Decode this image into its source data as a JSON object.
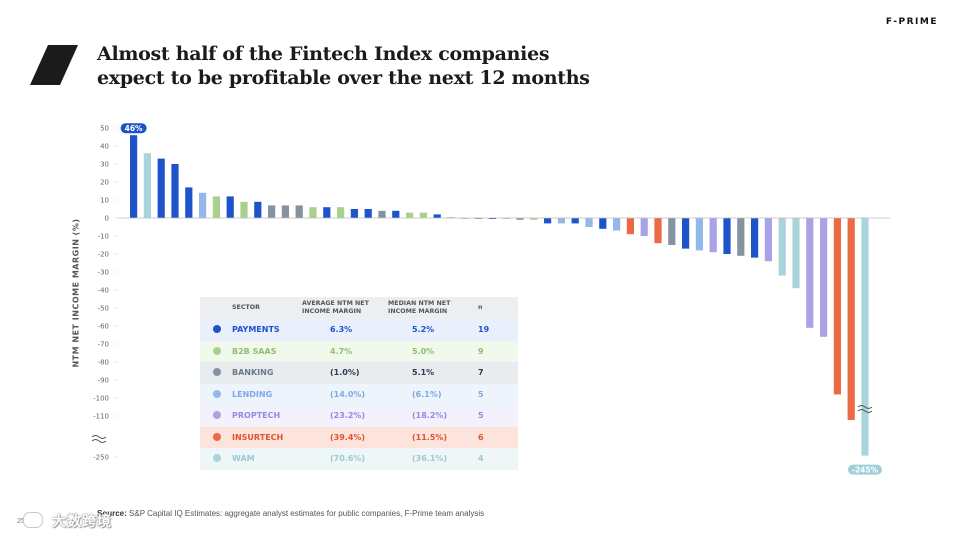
{
  "slide": {
    "title_line1": "Almost half of the Fintech Index companies",
    "title_line2": "expect to be profitable over the next 12 months",
    "brand": "F-PRIME",
    "page_number": "25",
    "watermark_text": "大数跨境",
    "source_label": "Source:",
    "source_text": " S&P Capital IQ Estimates: aggregate analyst estimates for public companies, F-Prime team analysis"
  },
  "colors": {
    "payments": "#1f53c9",
    "b2b_saas": "#a9d18e",
    "banking": "#8593a0",
    "lending": "#93b9e8",
    "proptech": "#a9a2e6",
    "insurtech": "#ea6a43",
    "wam": "#a9d4db",
    "callout": "#1f53c9",
    "callout_neg": "#9fcfd8"
  },
  "chart_data": {
    "type": "bar",
    "ylabel": "NTM NET INCOME MARGIN (%)",
    "yticks": [
      "50",
      "40",
      "30",
      "20",
      "10",
      "0",
      "-10",
      "-20",
      "-30",
      "-40",
      "-50",
      "-60",
      "-70",
      "-80",
      "-90",
      "-100",
      "-110",
      "-250"
    ],
    "ylim": [
      -120,
      50
    ],
    "axis_break": "between -110 and -250",
    "callouts": [
      {
        "label": "46%",
        "bar_index": 0
      },
      {
        "label": "-245%",
        "bar_index": 53
      }
    ],
    "values": [
      {
        "v": 46,
        "s": "payments"
      },
      {
        "v": 36,
        "s": "wam"
      },
      {
        "v": 33,
        "s": "payments"
      },
      {
        "v": 30,
        "s": "payments"
      },
      {
        "v": 17,
        "s": "payments"
      },
      {
        "v": 14,
        "s": "lending"
      },
      {
        "v": 12,
        "s": "b2b_saas"
      },
      {
        "v": 12,
        "s": "payments"
      },
      {
        "v": 9,
        "s": "b2b_saas"
      },
      {
        "v": 9,
        "s": "payments"
      },
      {
        "v": 7,
        "s": "banking"
      },
      {
        "v": 7,
        "s": "banking"
      },
      {
        "v": 7,
        "s": "banking"
      },
      {
        "v": 6,
        "s": "b2b_saas"
      },
      {
        "v": 6,
        "s": "payments"
      },
      {
        "v": 6,
        "s": "b2b_saas"
      },
      {
        "v": 5,
        "s": "payments"
      },
      {
        "v": 5,
        "s": "payments"
      },
      {
        "v": 4,
        "s": "banking"
      },
      {
        "v": 4,
        "s": "payments"
      },
      {
        "v": 3,
        "s": "b2b_saas"
      },
      {
        "v": 3,
        "s": "b2b_saas"
      },
      {
        "v": 2,
        "s": "payments"
      },
      {
        "v": 0.5,
        "s": "lending"
      },
      {
        "v": 0,
        "s": "b2b_saas"
      },
      {
        "v": 0,
        "s": "banking"
      },
      {
        "v": 0,
        "s": "payments"
      },
      {
        "v": 0,
        "s": "b2b_saas"
      },
      {
        "v": -1,
        "s": "banking"
      },
      {
        "v": -1,
        "s": "b2b_saas"
      },
      {
        "v": -3,
        "s": "payments"
      },
      {
        "v": -3,
        "s": "lending"
      },
      {
        "v": -3,
        "s": "payments"
      },
      {
        "v": -5,
        "s": "lending"
      },
      {
        "v": -6,
        "s": "payments"
      },
      {
        "v": -7,
        "s": "lending"
      },
      {
        "v": -9,
        "s": "insurtech"
      },
      {
        "v": -10,
        "s": "proptech"
      },
      {
        "v": -14,
        "s": "insurtech"
      },
      {
        "v": -15,
        "s": "banking"
      },
      {
        "v": -17,
        "s": "payments"
      },
      {
        "v": -18,
        "s": "lending"
      },
      {
        "v": -19,
        "s": "proptech"
      },
      {
        "v": -20,
        "s": "payments"
      },
      {
        "v": -21,
        "s": "banking"
      },
      {
        "v": -22,
        "s": "payments"
      },
      {
        "v": -24,
        "s": "proptech"
      },
      {
        "v": -32,
        "s": "wam"
      },
      {
        "v": -39,
        "s": "wam"
      },
      {
        "v": -61,
        "s": "proptech"
      },
      {
        "v": -66,
        "s": "proptech"
      },
      {
        "v": -98,
        "s": "insurtech"
      },
      {
        "v": -117,
        "s": "insurtech"
      },
      {
        "v": -245,
        "s": "wam"
      }
    ]
  },
  "table": {
    "headers": {
      "sector": "SECTOR",
      "avg_line1": "AVERAGE NTM NET",
      "avg_line2": "INCOME MARGIN",
      "med_line1": "MEDIAN NTM NET",
      "med_line2": "INCOME MARGIN",
      "n": "n"
    },
    "rows": [
      {
        "key": "payments",
        "sector": "PAYMENTS",
        "average": "6.3%",
        "median": "5.2%",
        "n": "19",
        "row_bg": "#e9f0fb",
        "text": "#1f53c9",
        "num": "#1f53c9"
      },
      {
        "key": "b2b_saas",
        "sector": "B2B SAAS",
        "average": "4.7%",
        "median": "5.0%",
        "n": "9",
        "row_bg": "#f1f8ec",
        "text": "#8fbf6f",
        "num": "#8fbf6f"
      },
      {
        "key": "banking",
        "sector": "BANKING",
        "average": "(1.0%)",
        "median": "5.1%",
        "n": "7",
        "row_bg": "#e9ecef",
        "text": "#6b7886",
        "num": "#2c3b52"
      },
      {
        "key": "lending",
        "sector": "LENDING",
        "average": "(14.0%)",
        "median": "(6.1%)",
        "n": "5",
        "row_bg": "#edf4fc",
        "text": "#7ea9e2",
        "num": "#7ea9e2"
      },
      {
        "key": "proptech",
        "sector": "PROPTECH",
        "average": "(23.2%)",
        "median": "(18.2%)",
        "n": "5",
        "row_bg": "#f2f1fc",
        "text": "#928be0",
        "num": "#928be0"
      },
      {
        "key": "insurtech",
        "sector": "INSURTECH",
        "average": "(39.4%)",
        "median": "(11.5%)",
        "n": "6",
        "row_bg": "#fce4dd",
        "text": "#e0542d",
        "num": "#e0542d"
      },
      {
        "key": "wam",
        "sector": "WAM",
        "average": "(70.6%)",
        "median": "(36.1%)",
        "n": "4",
        "row_bg": "#eef6f8",
        "text": "#9bc9d2",
        "num": "#9bc9d2"
      }
    ]
  }
}
